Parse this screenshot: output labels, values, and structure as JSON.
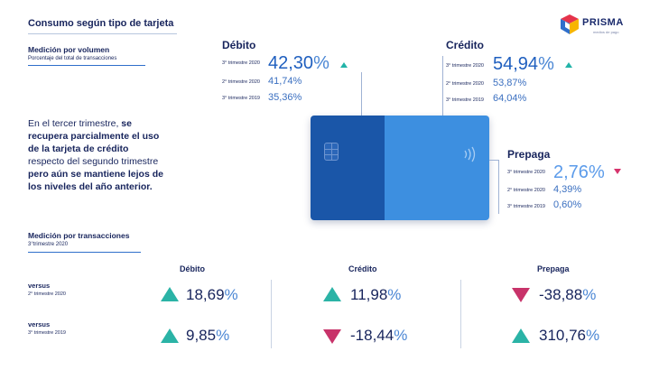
{
  "header": {
    "title": "Consumo según tipo de tarjeta",
    "brand": "PRISMA",
    "brand_tagline": "medios de pago",
    "brand_colors": [
      "#e5334b",
      "#f7b500",
      "#2f6fcb",
      "#1a2a6c"
    ]
  },
  "volumen": {
    "title": "Medición por volumen",
    "subtitle": "Porcentaje del total de transacciones"
  },
  "debito": {
    "label": "Débito",
    "rows": [
      {
        "period": "3° trimestre 2020",
        "value": "42,30",
        "trend": "up"
      },
      {
        "period": "2° trimestre 2020",
        "value": "41,74"
      },
      {
        "period": "3° trimestre 2019",
        "value": "35,36"
      }
    ]
  },
  "credito": {
    "label": "Crédito",
    "rows": [
      {
        "period": "3° trimestre 2020",
        "value": "54,94",
        "trend": "up"
      },
      {
        "period": "2° trimestre 2020",
        "value": "53,87"
      },
      {
        "period": "3° trimestre 2019",
        "value": "64,04"
      }
    ]
  },
  "prepaga": {
    "label": "Prepaga",
    "rows": [
      {
        "period": "3° trimestre 2020",
        "value": "2,76",
        "trend": "down"
      },
      {
        "period": "2° trimestre 2020",
        "value": "4,39"
      },
      {
        "period": "3° trimestre 2019",
        "value": "0,60"
      }
    ]
  },
  "percent_sign": "%",
  "summary": {
    "line1_a": "En el tercer trimestre,",
    "line1_b": "se",
    "line2": "recupera parcialmente el uso",
    "line3": "de la tarjeta de crédito",
    "line4": "respecto del segundo trimestre",
    "line5": "pero aún se mantiene lejos de",
    "line6": "los niveles del año anterior."
  },
  "card_colors": {
    "left": "#1a56a8",
    "right": "#3d8fe0"
  },
  "transacciones": {
    "title": "Medición por transacciones",
    "subtitle": "3°trimestre 2020",
    "columns": [
      "Débito",
      "Crédito",
      "Prepaga"
    ],
    "rows": [
      {
        "label": "versus",
        "sublabel": "2° trimestre 2020",
        "values": [
          {
            "value": "18,69",
            "trend": "up"
          },
          {
            "value": "11,98",
            "trend": "up"
          },
          {
            "value": "-38,88",
            "trend": "down"
          }
        ]
      },
      {
        "label": "versus",
        "sublabel": "3° trimestre 2019",
        "values": [
          {
            "value": "9,85",
            "trend": "up"
          },
          {
            "value": "-18,44",
            "trend": "down"
          },
          {
            "value": "310,76",
            "trend": "up"
          }
        ]
      }
    ]
  }
}
